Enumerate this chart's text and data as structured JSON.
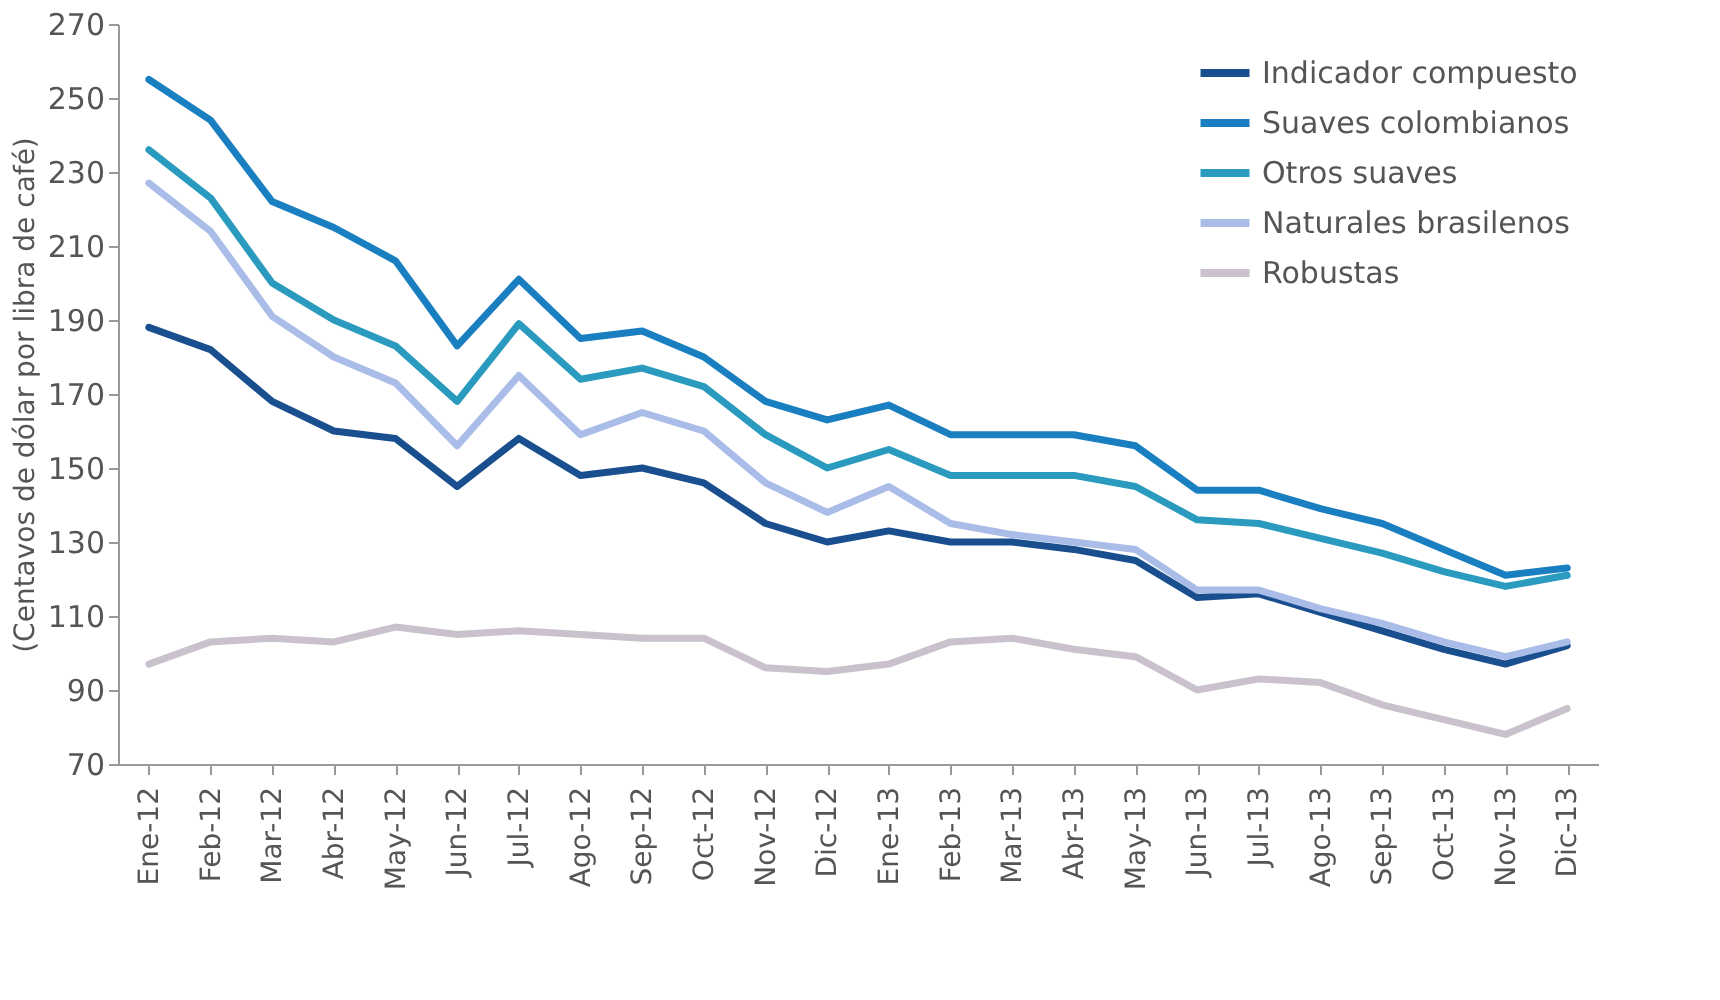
{
  "chart_data": {
    "type": "line",
    "ylabel": "(Centavos de dólar por libra de café)",
    "categories": [
      "Ene-12",
      "Feb-12",
      "Mar-12",
      "Abr-12",
      "May-12",
      "Jun-12",
      "Jul-12",
      "Ago-12",
      "Sep-12",
      "Oct-12",
      "Nov-12",
      "Dic-12",
      "Ene-13",
      "Feb-13",
      "Mar-13",
      "Abr-13",
      "May-13",
      "Jun-13",
      "Jul-13",
      "Ago-13",
      "Sep-13",
      "Oct-13",
      "Nov-13",
      "Dic-13"
    ],
    "series": [
      {
        "name": "Indicador compuesto",
        "color": "#1a4f8f",
        "values": [
          188,
          182,
          168,
          160,
          158,
          145,
          158,
          148,
          150,
          146,
          135,
          130,
          133,
          130,
          130,
          128,
          125,
          115,
          116,
          111,
          106,
          101,
          97,
          102
        ]
      },
      {
        "name": "Suaves colombianos",
        "color": "#1a7fc0",
        "values": [
          255,
          244,
          222,
          215,
          206,
          183,
          201,
          185,
          187,
          180,
          168,
          163,
          167,
          159,
          159,
          159,
          156,
          144,
          144,
          139,
          135,
          128,
          121,
          123
        ]
      },
      {
        "name": "Otros suaves",
        "color": "#2a9bbf",
        "values": [
          236,
          223,
          200,
          190,
          183,
          168,
          189,
          174,
          177,
          172,
          159,
          150,
          155,
          148,
          148,
          148,
          145,
          136,
          135,
          131,
          127,
          122,
          118,
          121
        ]
      },
      {
        "name": "Naturales brasilenos",
        "color": "#a9bde8",
        "values": [
          227,
          214,
          191,
          180,
          173,
          156,
          175,
          159,
          165,
          160,
          146,
          138,
          145,
          135,
          132,
          130,
          128,
          117,
          117,
          112,
          108,
          103,
          99,
          103
        ]
      },
      {
        "name": "Robustas",
        "color": "#c9c2cc",
        "values": [
          97,
          103,
          104,
          103,
          107,
          105,
          106,
          105,
          104,
          104,
          96,
          95,
          97,
          103,
          104,
          101,
          99,
          90,
          93,
          92,
          86,
          82,
          78,
          85
        ]
      }
    ],
    "ylim": [
      70,
      270
    ],
    "yticks": [
      70,
      90,
      110,
      130,
      150,
      170,
      190,
      210,
      230,
      250,
      270
    ],
    "grid": false,
    "legend": "top right",
    "marker": "none",
    "line_style": "solid"
  }
}
